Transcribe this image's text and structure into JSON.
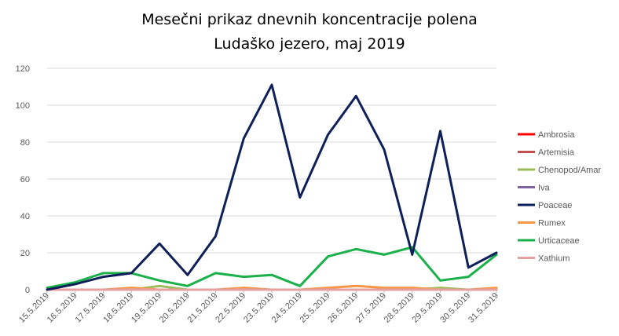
{
  "chart_data": {
    "type": "line",
    "title": "Mesečni prikaz dnevnih koncentracije polena",
    "subtitle": "Ludaško jezero, maj 2019",
    "xlabel": "",
    "ylabel": "",
    "ylim": [
      0,
      120
    ],
    "yticks": [
      "0",
      "20",
      "40",
      "60",
      "80",
      "100",
      "120"
    ],
    "grid": true,
    "legend_position": "right",
    "categories": [
      "15.5.2019",
      "16.5.2019",
      "17.5.2019",
      "18.5.2019",
      "19.5.2019",
      "20.5.2019",
      "21.5.2019",
      "22.5.2019",
      "23.5.2019",
      "24.5.2019",
      "25.5.2019",
      "26.5.2019",
      "27.5.2019",
      "28.5.2019",
      "29.5.2019",
      "30.5.2019",
      "31.5.2019"
    ],
    "series": [
      {
        "name": "Ambrosia",
        "color": "#ff0000",
        "values": [
          0,
          0,
          0,
          0,
          0,
          0,
          0,
          0,
          0,
          0,
          0,
          0,
          0,
          0,
          0,
          0,
          0
        ]
      },
      {
        "name": "Artemisia",
        "color": "#c0504d",
        "values": [
          0,
          0,
          0,
          0,
          0,
          0,
          0,
          0,
          0,
          0,
          0,
          0,
          0,
          0,
          0,
          0,
          0
        ]
      },
      {
        "name": "Chenopod/Amar",
        "color": "#9bbb59",
        "values": [
          0,
          0,
          0,
          0,
          2,
          0,
          0,
          0,
          0,
          0,
          0,
          0,
          0,
          0,
          1,
          0,
          0
        ]
      },
      {
        "name": "Iva",
        "color": "#8064a2",
        "values": [
          0,
          0,
          0,
          0,
          0,
          0,
          0,
          0,
          0,
          0,
          0,
          0,
          0,
          0,
          0,
          0,
          0
        ]
      },
      {
        "name": "Poaceae",
        "color": "#0f1f5a",
        "values": [
          0,
          3,
          7,
          9,
          25,
          8,
          29,
          82,
          111,
          50,
          84,
          105,
          76,
          19,
          86,
          12,
          20
        ]
      },
      {
        "name": "Rumex",
        "color": "#f79646",
        "values": [
          0,
          0,
          0,
          1,
          0,
          0,
          0,
          1,
          0,
          0,
          1,
          2,
          1,
          1,
          0,
          0,
          1
        ]
      },
      {
        "name": "Urticaceae",
        "color": "#1ab04a",
        "values": [
          1,
          4,
          9,
          9,
          5,
          2,
          9,
          7,
          8,
          2,
          18,
          22,
          19,
          23,
          5,
          7,
          19
        ]
      },
      {
        "name": "Xathium",
        "color": "#e6a0a0",
        "values": [
          0,
          0,
          0,
          0,
          0,
          0,
          0,
          0,
          0,
          0,
          0,
          0,
          0,
          0,
          0,
          0,
          0
        ]
      }
    ]
  }
}
